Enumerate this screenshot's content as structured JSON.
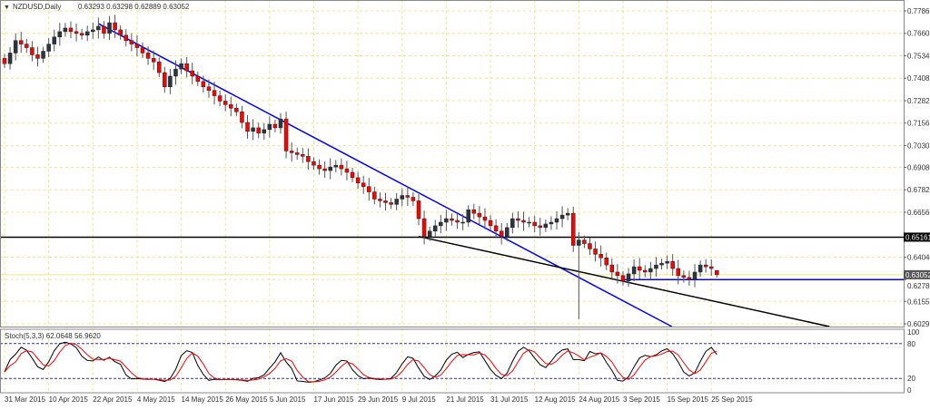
{
  "header": {
    "symbol": "NZDUSD,Daily",
    "ohlc": "0.63293 0.63298 0.62889 0.63052"
  },
  "indicator": {
    "label": "Stoch(5,3,3) 62.0648 56.9620",
    "levels": [
      "100",
      "80",
      "20",
      "0"
    ]
  },
  "chart_data": {
    "type": "candlestick",
    "title": "NZDUSD,Daily",
    "first_date": "2015-03-31",
    "ylim": [
      0.60295,
      0.77865
    ],
    "y_ticks": [
      "0.77865",
      "0.76605",
      "0.75345",
      "0.74085",
      "0.72825",
      "0.71565",
      "0.70305",
      "0.69080",
      "0.67820",
      "0.66560",
      "0.64040",
      "0.62780",
      "0.61555",
      "0.60295"
    ],
    "x_ticks": [
      "31 Mar 2015",
      "10 Apr 2015",
      "22 Apr 2015",
      "4 May 2015",
      "14 May 2015",
      "26 May 2015",
      "5 Jun 2015",
      "17 Jun 2015",
      "29 Jun 2015",
      "9 Jul 2015",
      "21 Jul 2015",
      "31 Jul 2015",
      "12 Aug 2015",
      "24 Aug 2015",
      "3 Sep 2015",
      "15 Sep 2015",
      "25 Sep 2015"
    ],
    "closes": [
      0.749,
      0.755,
      0.762,
      0.76,
      0.758,
      0.754,
      0.752,
      0.756,
      0.76,
      0.764,
      0.767,
      0.769,
      0.767,
      0.766,
      0.765,
      0.767,
      0.768,
      0.77,
      0.766,
      0.772,
      0.768,
      0.765,
      0.762,
      0.76,
      0.758,
      0.755,
      0.752,
      0.75,
      0.744,
      0.736,
      0.742,
      0.746,
      0.749,
      0.745,
      0.742,
      0.739,
      0.736,
      0.734,
      0.731,
      0.728,
      0.726,
      0.724,
      0.722,
      0.716,
      0.711,
      0.713,
      0.71,
      0.712,
      0.715,
      0.713,
      0.718,
      0.7,
      0.699,
      0.698,
      0.697,
      0.694,
      0.692,
      0.69,
      0.689,
      0.691,
      0.692,
      0.69,
      0.688,
      0.685,
      0.682,
      0.68,
      0.677,
      0.673,
      0.672,
      0.671,
      0.67,
      0.673,
      0.675,
      0.674,
      0.672,
      0.662,
      0.652,
      0.655,
      0.658,
      0.66,
      0.662,
      0.661,
      0.66,
      0.66,
      0.667,
      0.665,
      0.663,
      0.661,
      0.658,
      0.655,
      0.652,
      0.657,
      0.662,
      0.661,
      0.66,
      0.66,
      0.658,
      0.657,
      0.659,
      0.66,
      0.662,
      0.664,
      0.665,
      0.647,
      0.65,
      0.648,
      0.645,
      0.642,
      0.64,
      0.636,
      0.632,
      0.63,
      0.627,
      0.631,
      0.635,
      0.633,
      0.632,
      0.634,
      0.636,
      0.637,
      0.638,
      0.634,
      0.63,
      0.629,
      0.628,
      0.632,
      0.636,
      0.635,
      0.634,
      0.63052
    ],
    "spike_low": {
      "date": "2015-08-24",
      "price": 0.6055
    },
    "last_price": {
      "label": "0.63052",
      "value": 0.63052
    },
    "horizontal_level": {
      "label": "0.65161",
      "value": 0.65161,
      "color": "#000000"
    },
    "support_line": {
      "from_date": "2015-09-03",
      "value": 0.6278,
      "color": "#0000ff"
    },
    "trendlines": [
      {
        "color": "#0000ff",
        "p1": [
          "2015-04-23",
          0.7715
        ],
        "p2": [
          "2015-09-15",
          0.6028
        ]
      },
      {
        "color": "#000000",
        "p1": [
          "2015-07-14",
          0.652
        ],
        "p2": [
          "2015-09-15",
          0.6214
        ]
      }
    ],
    "colors": {
      "bull": "#2b3440",
      "bear": "#ff0000",
      "stoch_main": "#000000",
      "stoch_signal": "#ff0000",
      "grid": "#f0e68c"
    }
  }
}
